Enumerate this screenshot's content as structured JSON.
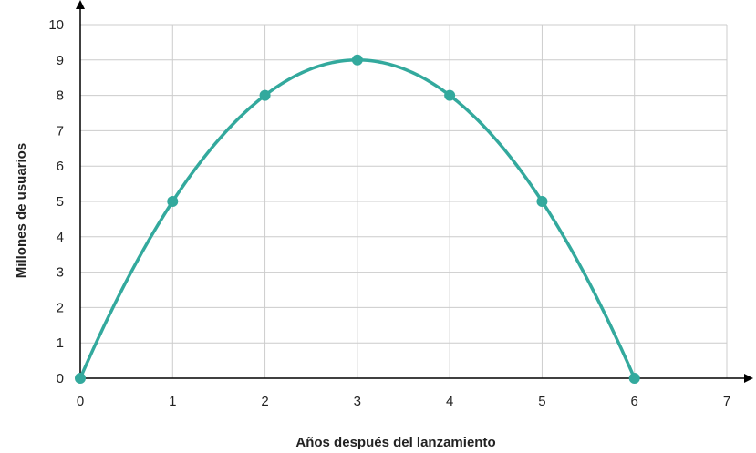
{
  "chart_data": {
    "type": "line",
    "title": "",
    "xlabel": "Años después del lanzamiento",
    "ylabel": "Millones de usuarios",
    "xlim": [
      0,
      7
    ],
    "ylim": [
      0,
      10
    ],
    "x_ticks": [
      0,
      1,
      2,
      3,
      4,
      5,
      6,
      7
    ],
    "y_ticks": [
      0,
      1,
      2,
      3,
      4,
      5,
      6,
      7,
      8,
      9,
      10
    ],
    "grid": true,
    "curve": "smooth parabola through points",
    "series": [
      {
        "x": [
          0,
          1,
          2,
          3,
          4,
          5,
          6
        ],
        "values": [
          0,
          5,
          8,
          9,
          8,
          5,
          0
        ]
      }
    ],
    "colors": {
      "series": "#33a99d",
      "grid": "#cccccc",
      "axis": "#000000"
    }
  }
}
